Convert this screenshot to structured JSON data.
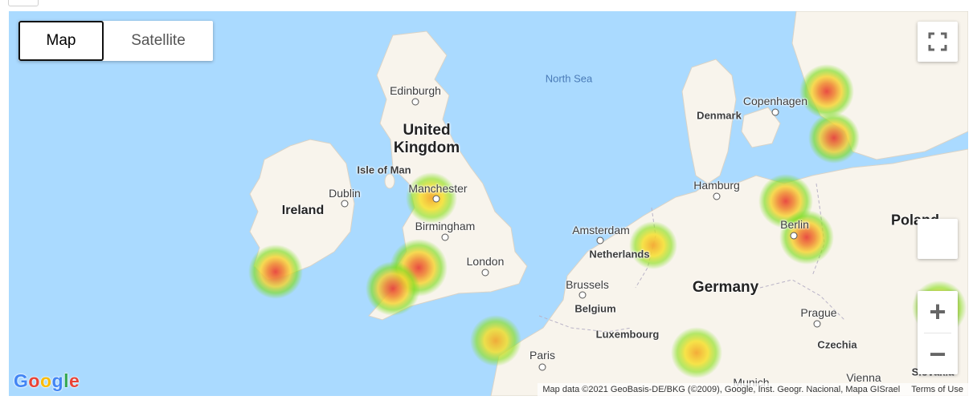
{
  "map_type": {
    "map_label": "Map",
    "satellite_label": "Satellite",
    "selected": "Map"
  },
  "labels": {
    "north_sea": "North Sea",
    "edinburgh": "Edinburgh",
    "united_kingdom": "United Kingdom",
    "isle_of_man": "Isle of Man",
    "dublin": "Dublin",
    "ireland": "Ireland",
    "manchester": "Manchester",
    "birmingham": "Birmingham",
    "london": "London",
    "amsterdam": "Amsterdam",
    "netherlands": "Netherlands",
    "brussels": "Brussels",
    "belgium": "Belgium",
    "luxembourg": "Luxembourg",
    "paris": "Paris",
    "germany": "Germany",
    "hamburg": "Hamburg",
    "berlin": "Berlin",
    "copenhagen": "Copenhagen",
    "denmark": "Denmark",
    "poland": "Poland",
    "prague": "Prague",
    "czechia": "Czechia",
    "munich": "Munich",
    "vienna": "Vienna",
    "slovakia": "Slovakia"
  },
  "heatmap_points": [
    {
      "near": "Cork, Ireland"
    },
    {
      "near": "Manchester"
    },
    {
      "near": "Cardiff / Bristol"
    },
    {
      "near": "Swansea"
    },
    {
      "near": "Normandy"
    },
    {
      "near": "Netherlands"
    },
    {
      "near": "Stuttgart region"
    },
    {
      "near": "Rostock"
    },
    {
      "near": "Berlin"
    },
    {
      "near": "Malmö"
    },
    {
      "near": "Sweden south coast"
    },
    {
      "near": "Slovakia"
    }
  ],
  "controls": {
    "zoom_in": "+",
    "zoom_out": "−"
  },
  "logo": "Google",
  "attribution": {
    "text": "Map data ©2021 GeoBasis-DE/BKG (©2009), Google, Inst. Geogr. Nacional, Mapa GISrael",
    "terms": "Terms of Use"
  },
  "colors": {
    "water": "#aadaff",
    "land": "#f8f4ec",
    "heat_hot": "#e8433a",
    "heat_warm": "#f6c22c",
    "heat_cool": "#7ddc1f"
  }
}
